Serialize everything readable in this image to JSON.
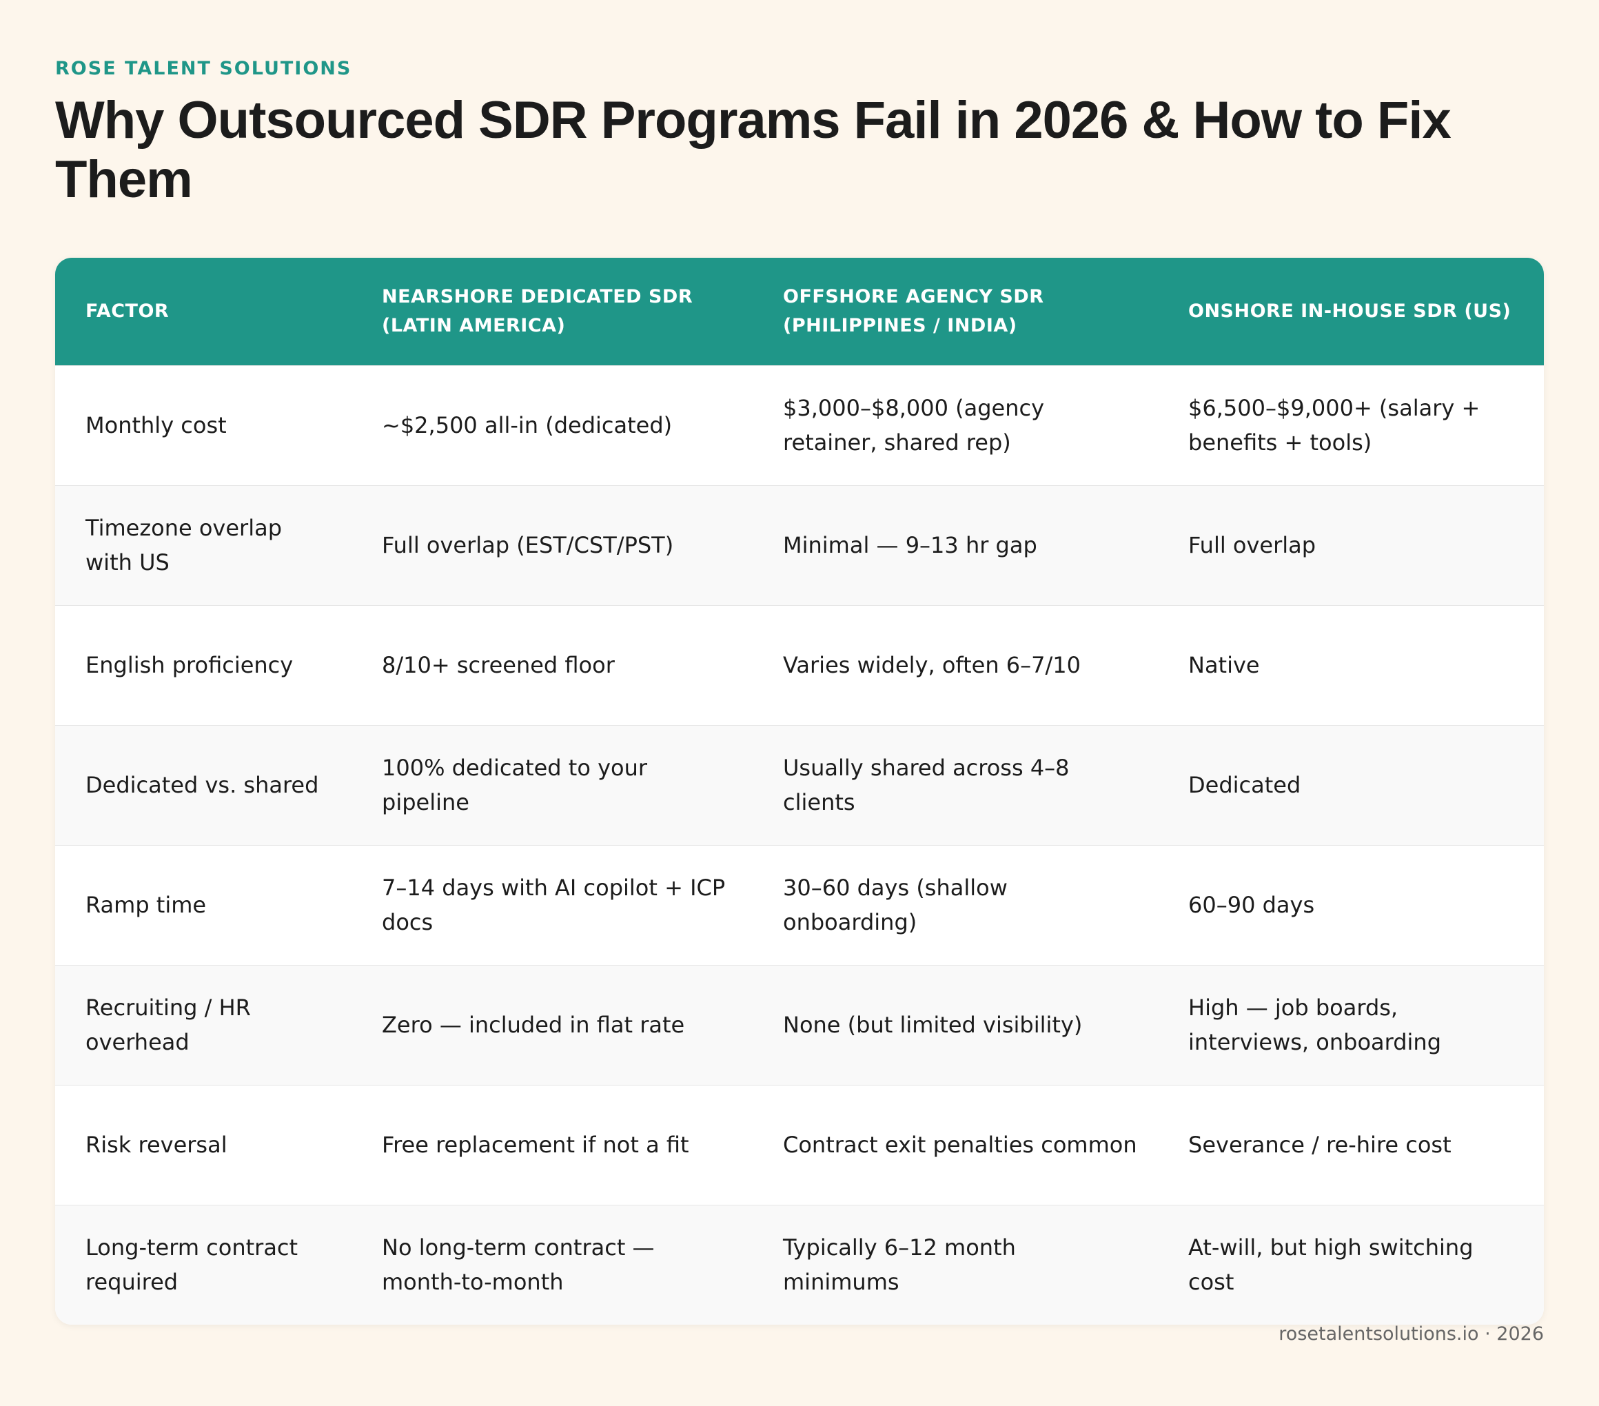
{
  "header": {
    "brand": "ROSE TALENT SOLUTIONS",
    "title": "Why Outsourced SDR Programs Fail in 2026 & How to Fix Them"
  },
  "table": {
    "columns": [
      "FACTOR",
      "NEARSHORE DEDICATED SDR (LATIN AMERICA)",
      "OFFSHORE AGENCY SDR (PHILIPPINES / INDIA)",
      "ONSHORE IN-HOUSE SDR (US)"
    ],
    "rows": [
      [
        "Monthly cost",
        "~$2,500 all-in (dedicated)",
        "$3,000–$8,000 (agency retainer, shared rep)",
        "$6,500–$9,000+ (salary + benefits + tools)"
      ],
      [
        "Timezone overlap with US",
        "Full overlap (EST/CST/PST)",
        "Minimal — 9–13 hr gap",
        "Full overlap"
      ],
      [
        "English proficiency",
        "8/10+ screened floor",
        "Varies widely, often 6–7/10",
        "Native"
      ],
      [
        "Dedicated vs. shared",
        "100% dedicated to your pipeline",
        "Usually shared across 4–8 clients",
        "Dedicated"
      ],
      [
        "Ramp time",
        "7–14 days with AI copilot + ICP docs",
        "30–60 days (shallow onboarding)",
        "60–90 days"
      ],
      [
        "Recruiting / HR overhead",
        "Zero — included in flat rate",
        "None (but limited visibility)",
        "High — job boards, interviews, onboarding"
      ],
      [
        "Risk reversal",
        "Free replacement if not a fit",
        "Contract exit penalties common",
        "Severance / re-hire cost"
      ],
      [
        "Long-term contract required",
        "No long-term contract — month-to-month",
        "Typically 6–12 month minimums",
        "At-will, but high switching cost"
      ]
    ]
  },
  "footer": "rosetalentsolutions.io · 2026"
}
